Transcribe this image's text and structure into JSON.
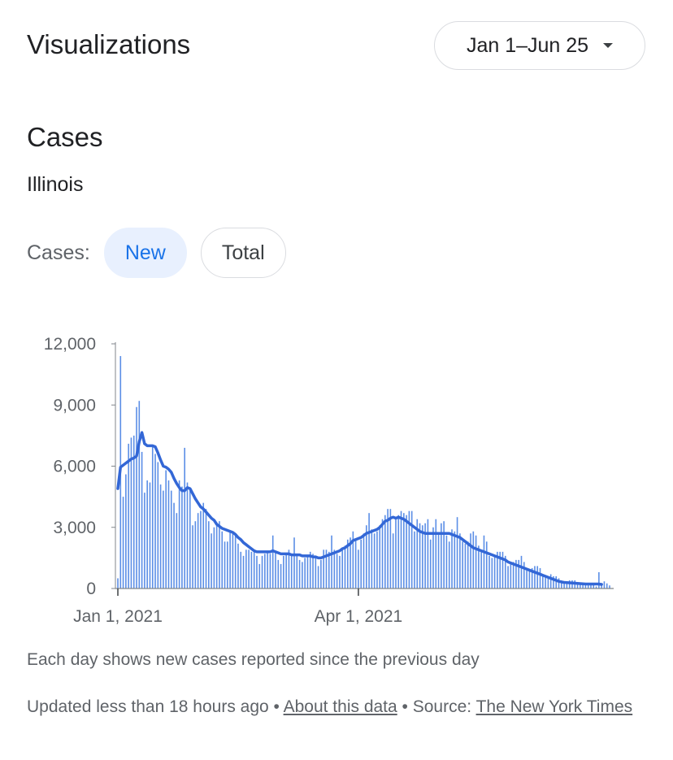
{
  "header": {
    "title": "Visualizations",
    "date_range": "Jan 1–Jun 25"
  },
  "section": {
    "title": "Cases",
    "region": "Illinois"
  },
  "toggle": {
    "label": "Cases:",
    "options": [
      "New",
      "Total"
    ],
    "selected": "New"
  },
  "colors": {
    "accent": "#1a73e8",
    "bar": "#5b8ee6",
    "line": "#3367d6",
    "axis": "#5f6368"
  },
  "chart_data": {
    "type": "bar",
    "title": "",
    "xlabel": "",
    "ylabel": "",
    "x_start": "2021-01-01",
    "x_end": "2021-06-25",
    "x_ticks": [
      {
        "label": "Jan 1, 2021",
        "day": 0
      },
      {
        "label": "Apr 1, 2021",
        "day": 90
      }
    ],
    "y_ticks": [
      {
        "label": "0",
        "value": 0
      },
      {
        "label": "3,000",
        "value": 3000
      },
      {
        "label": "6,000",
        "value": 6000
      },
      {
        "label": "9,000",
        "value": 9000
      },
      {
        "label": "12,000",
        "value": 12000
      }
    ],
    "ylim": [
      0,
      12000
    ],
    "grid": false,
    "series": [
      {
        "values": [
          500,
          11400,
          4500,
          5600,
          7100,
          7400,
          7500,
          8900,
          9200,
          6700,
          4700,
          5300,
          5200,
          7000,
          6600,
          6200,
          5100,
          4800,
          5800,
          5300,
          4800,
          4200,
          3700,
          5300,
          5000,
          6900,
          5200,
          4900,
          3100,
          3300,
          3700,
          3800,
          4200,
          3900,
          3300,
          2700,
          3000,
          3100,
          3300,
          2800,
          2300,
          2300,
          2800,
          2800,
          2600,
          2200,
          1800,
          1600,
          1900,
          1900,
          1800,
          1800,
          1600,
          1200,
          1600,
          1700,
          1800,
          1700,
          2600,
          1800,
          1400,
          1200,
          1600,
          1700,
          1900,
          1700,
          2500,
          1700,
          1400,
          1300,
          1500,
          1600,
          1800,
          1700,
          1500,
          1100,
          1400,
          1900,
          1900,
          1800,
          2600,
          1900,
          1700,
          1600,
          1900,
          2100,
          2400,
          2500,
          2800,
          2400,
          1900,
          2400,
          2700,
          3100,
          3700,
          2900,
          2700,
          2800,
          3100,
          3400,
          3600,
          3900,
          3900,
          2700,
          3400,
          3600,
          3800,
          3700,
          3600,
          3800,
          3800,
          2800,
          3400,
          3200,
          3100,
          3200,
          3400,
          2400,
          3000,
          3400,
          2700,
          3200,
          3300,
          2600,
          2300,
          2900,
          2800,
          3500,
          2700,
          2300,
          2200,
          2300,
          2700,
          2800,
          2600,
          2100,
          1900,
          2600,
          2300,
          1600,
          1500,
          1600,
          1800,
          1800,
          1800,
          1600,
          1100,
          1200,
          1300,
          1400,
          1400,
          1600,
          1300,
          1000,
          900,
          1000,
          1100,
          1100,
          1000,
          700,
          600,
          500,
          700,
          600,
          600,
          500,
          400,
          300,
          300,
          400,
          400,
          400,
          300,
          200,
          200,
          250,
          250,
          250,
          200,
          100,
          800,
          250,
          350,
          250,
          150
        ],
        "trend": [
          4900,
          5950,
          6050,
          6150,
          6250,
          6350,
          6400,
          6500,
          7200,
          7650,
          7100,
          7000,
          7000,
          7000,
          6950,
          6650,
          6300,
          6000,
          5950,
          5850,
          5700,
          5400,
          5150,
          4950,
          4800,
          4800,
          4950,
          4900,
          4650,
          4400,
          4200,
          4000,
          3900,
          3750,
          3600,
          3450,
          3350,
          3150,
          3050,
          2950,
          2900,
          2850,
          2800,
          2750,
          2650,
          2500,
          2400,
          2250,
          2150,
          2050,
          1950,
          1850,
          1800,
          1800,
          1800,
          1800,
          1800,
          1800,
          1850,
          1800,
          1750,
          1700,
          1700,
          1700,
          1700,
          1650,
          1650,
          1650,
          1650,
          1600,
          1600,
          1600,
          1600,
          1550,
          1550,
          1500,
          1500,
          1550,
          1600,
          1650,
          1700,
          1750,
          1800,
          1850,
          1950,
          2000,
          2100,
          2200,
          2350,
          2400,
          2450,
          2500,
          2600,
          2700,
          2750,
          2800,
          2850,
          2900,
          3000,
          3150,
          3300,
          3350,
          3450,
          3500,
          3450,
          3500,
          3450,
          3400,
          3300,
          3200,
          3100,
          3000,
          2900,
          2800,
          2750,
          2700,
          2700,
          2700,
          2700,
          2700,
          2700,
          2700,
          2700,
          2700,
          2700,
          2650,
          2600,
          2550,
          2500,
          2400,
          2300,
          2200,
          2100,
          2000,
          1950,
          1900,
          1850,
          1800,
          1750,
          1700,
          1650,
          1600,
          1550,
          1500,
          1450,
          1400,
          1300,
          1250,
          1200,
          1150,
          1100,
          1050,
          1000,
          950,
          900,
          850,
          800,
          750,
          700,
          650,
          600,
          550,
          500,
          450,
          400,
          350,
          320,
          300,
          290,
          280,
          270,
          260,
          250,
          240,
          230,
          220,
          220,
          220,
          220,
          220,
          220,
          200
        ]
      }
    ]
  },
  "footer": {
    "note": "Each day shows new cases reported since the previous day",
    "updated": "Updated less than 18 hours ago",
    "sep1": " • ",
    "about_link": "About this data",
    "sep2": " • Source: ",
    "source_link": "The New York Times"
  }
}
